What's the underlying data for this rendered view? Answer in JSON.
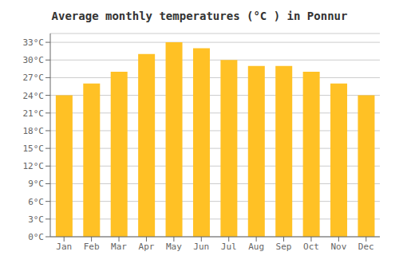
{
  "chart_data": {
    "type": "bar",
    "title": "Average monthly temperatures (°C ) in Ponnur",
    "categories": [
      "Jan",
      "Feb",
      "Mar",
      "Apr",
      "May",
      "Jun",
      "Jul",
      "Aug",
      "Sep",
      "Oct",
      "Nov",
      "Dec"
    ],
    "values": [
      24,
      26,
      28,
      31,
      33,
      32,
      30,
      29,
      29,
      28,
      26,
      24
    ],
    "color": "#FFC125",
    "ylim": [
      0,
      34.5
    ],
    "yticks": [
      {
        "value": 0,
        "label": "0°C"
      },
      {
        "value": 3,
        "label": "3°C"
      },
      {
        "value": 6,
        "label": "6°C"
      },
      {
        "value": 9,
        "label": "9°C"
      },
      {
        "value": 12,
        "label": "12°C"
      },
      {
        "value": 15,
        "label": "15°C"
      },
      {
        "value": 18,
        "label": "18°C"
      },
      {
        "value": 21,
        "label": "21°C"
      },
      {
        "value": 24,
        "label": "24°C"
      },
      {
        "value": 27,
        "label": "27°C"
      },
      {
        "value": 30,
        "label": "30°C"
      },
      {
        "value": 33,
        "label": "33°C"
      }
    ],
    "grid": true
  }
}
